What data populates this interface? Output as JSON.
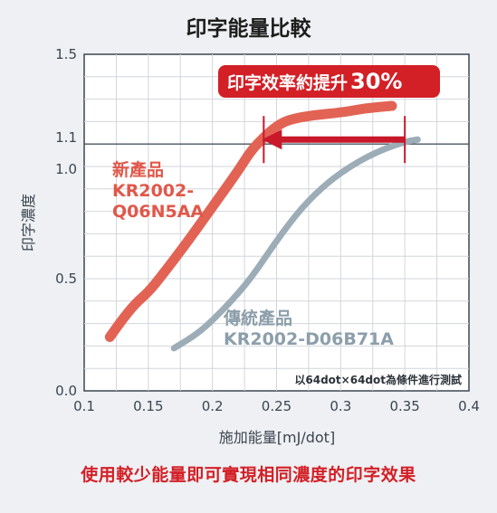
{
  "title": "印字能量比較",
  "footer": "使用較少能量即可實現相同濃度的印字效果",
  "chart_data": {
    "type": "line",
    "title": "印字能量比較",
    "xlabel": "施加能量[mJ/dot]",
    "ylabel": "印字濃度",
    "xlim": [
      0.1,
      0.4
    ],
    "ylim": [
      0.0,
      1.5
    ],
    "x_ticks": [
      "0.1",
      "0.15",
      "0.2",
      "0.25",
      "0.3",
      "0.35",
      "0.4"
    ],
    "y_ticks": [
      "0.0",
      "0.5",
      "1.0",
      "1.1",
      "1.5"
    ],
    "grid": true,
    "reference_line_y": 1.1,
    "series": [
      {
        "name": "新產品 KR2002-Q06N5AA",
        "label_lines": [
          "新產品",
          "KR2002-",
          "Q06N5AA"
        ],
        "color": "#e26354",
        "x": [
          0.12,
          0.13,
          0.14,
          0.15,
          0.16,
          0.18,
          0.2,
          0.22,
          0.23,
          0.24,
          0.25,
          0.26,
          0.28,
          0.3,
          0.32,
          0.34
        ],
        "y": [
          0.24,
          0.32,
          0.39,
          0.44,
          0.51,
          0.66,
          0.82,
          0.98,
          1.07,
          1.13,
          1.18,
          1.21,
          1.23,
          1.24,
          1.26,
          1.27
        ]
      },
      {
        "name": "傳統產品 KR2002-D06B71A",
        "label_lines": [
          "傳統產品",
          "KR2002-D06B71A"
        ],
        "color": "#9dadb7",
        "x": [
          0.17,
          0.19,
          0.21,
          0.23,
          0.25,
          0.27,
          0.29,
          0.31,
          0.33,
          0.35,
          0.36
        ],
        "y": [
          0.19,
          0.26,
          0.37,
          0.5,
          0.67,
          0.82,
          0.93,
          1.01,
          1.07,
          1.11,
          1.12
        ]
      }
    ],
    "annotations": {
      "arrow": {
        "from_x": 0.35,
        "to_x": 0.24,
        "y": 1.12,
        "color": "#c8182a"
      },
      "callout": {
        "prefix": "印字效率約提升",
        "value": "30%",
        "bg": "#d31f26"
      },
      "note": "以64dot×64dot為條件進行測試"
    }
  }
}
